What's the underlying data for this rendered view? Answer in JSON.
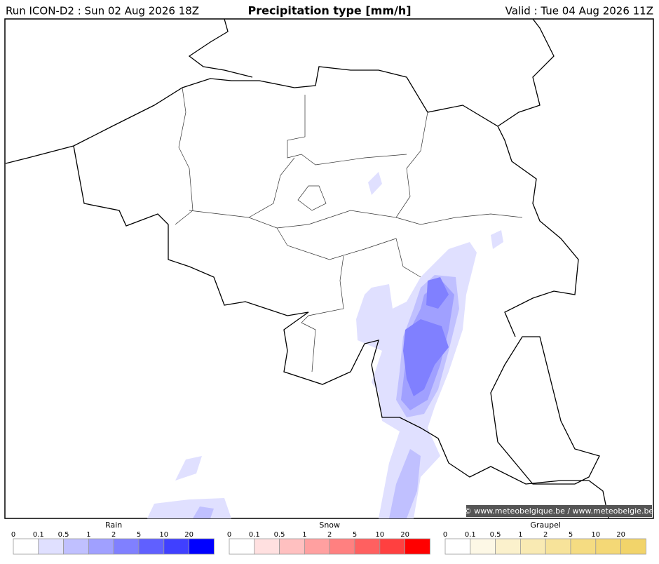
{
  "header": {
    "run": "Run ICON-D2 : Sun 02 Aug 2026 18Z",
    "title": "Precipitation type [mm/h]",
    "valid": "Valid : Tue 04 Aug 2026 11Z"
  },
  "copyright": "© www.meteobelgique.be / www.meteobelgie.be",
  "legends": [
    {
      "title": "Rain",
      "ticks": [
        "0",
        "0.1",
        "0.5",
        "1",
        "2",
        "5",
        "10",
        "20"
      ],
      "colors": [
        "#ffffff",
        "#e0e0ff",
        "#c0c0ff",
        "#a0a0ff",
        "#8080ff",
        "#6060ff",
        "#4040ff",
        "#0000ff"
      ]
    },
    {
      "title": "Snow",
      "ticks": [
        "0",
        "0.1",
        "0.5",
        "1",
        "2",
        "5",
        "10",
        "20"
      ],
      "colors": [
        "#ffffff",
        "#ffe0e0",
        "#ffc0c0",
        "#ffa0a0",
        "#ff8080",
        "#ff6060",
        "#ff4040",
        "#ff0000"
      ]
    },
    {
      "title": "Graupel",
      "ticks": [
        "0",
        "0.1",
        "0.5",
        "1",
        "2",
        "5",
        "10",
        "20"
      ],
      "colors": [
        "#ffffff",
        "#fdf8e6",
        "#fbf1cc",
        "#f9eab3",
        "#f7e39a",
        "#f5dc82",
        "#f4d876",
        "#f2d46a"
      ]
    }
  ]
}
